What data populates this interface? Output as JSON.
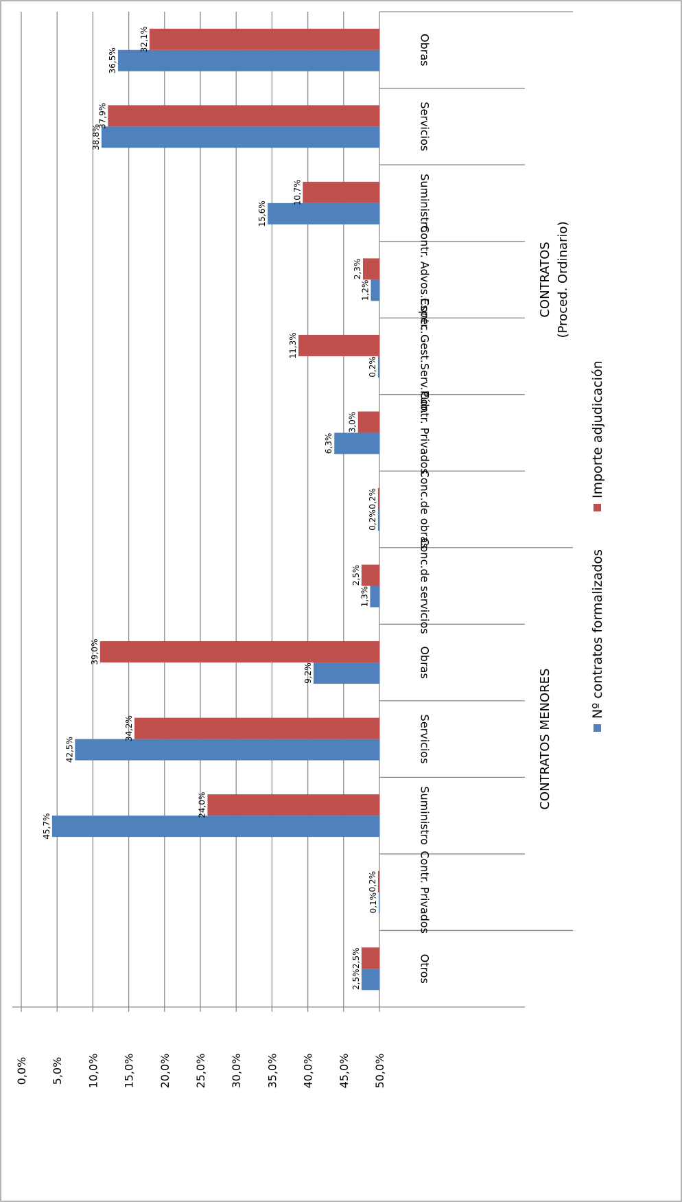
{
  "chart_data": {
    "type": "bar",
    "orientation": "horizontal, rendered rotated 90° clockwise",
    "ylim": [
      0,
      50
    ],
    "y_ticks": [
      "0,0%",
      "5,0%",
      "10,0%",
      "15,0%",
      "20,0%",
      "25,0%",
      "30,0%",
      "35,0%",
      "40,0%",
      "45,0%",
      "50,0%"
    ],
    "grid": true,
    "legend_position": "right",
    "groups": [
      {
        "label_line1": "CONTRATOS",
        "label_line2": "(Proced. Ordinario)",
        "start": 0,
        "end": 7
      },
      {
        "label_line1": "CONTRATOS MENORES",
        "label_line2": "",
        "start": 7,
        "end": 12
      }
    ],
    "categories": [
      "Obras",
      "Servicios",
      "Suministro",
      "Contr. Advos.Espec.",
      "Contr. Gest.Serv.Púb.",
      "Contr. Privados",
      "Conc.de obras",
      "Conc.de servicios",
      "Obras",
      "Servicios",
      "Suministro",
      "Contr. Privados",
      "Otros"
    ],
    "series": [
      {
        "name": "Nº contratos formalizados",
        "color": "#4f81bd",
        "values": [
          36.5,
          38.8,
          15.6,
          1.2,
          0.2,
          6.3,
          0.2,
          1.3,
          9.2,
          42.5,
          45.7,
          0.1,
          2.5
        ],
        "labels": [
          "36,5%",
          "38,8%",
          "15,6%",
          "1,2%",
          "0,2%",
          "6,3%",
          "0,2%",
          "1,3%",
          "9,2%",
          "42,5%",
          "45,7%",
          "0,1%",
          "2,5%"
        ]
      },
      {
        "name": "Importe adjudicación",
        "color": "#c0504d",
        "values": [
          32.1,
          37.9,
          10.7,
          2.3,
          11.3,
          3.0,
          0.2,
          2.5,
          39.0,
          34.2,
          24.0,
          0.2,
          2.5
        ],
        "labels": [
          "32,1%",
          "37,9%",
          "10,7%",
          "2,3%",
          "11,3%",
          "3,0%",
          "0,2%",
          "2,5%",
          "39,0%",
          "34,2%",
          "24,0%",
          "0,2%",
          "2,5%"
        ]
      }
    ]
  }
}
